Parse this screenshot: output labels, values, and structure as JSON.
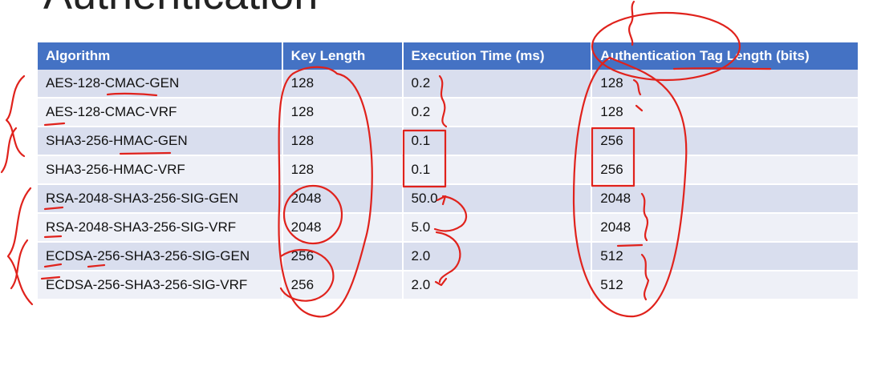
{
  "slide": {
    "title": "Authentication"
  },
  "table": {
    "headers": [
      "Algorithm",
      "Key Length",
      "Execution Time (ms)",
      "Authentication Tag Length (bits)"
    ],
    "rows": [
      [
        "AES-128-CMAC-GEN",
        "128",
        "0.2",
        "128"
      ],
      [
        "AES-128-CMAC-VRF",
        "128",
        "0.2",
        "128"
      ],
      [
        "SHA3-256-HMAC-GEN",
        "128",
        "0.1",
        "256"
      ],
      [
        "SHA3-256-HMAC-VRF",
        "128",
        "0.1",
        "256"
      ],
      [
        "RSA-2048-SHA3-256-SIG-GEN",
        "2048",
        "50.0",
        "2048"
      ],
      [
        "RSA-2048-SHA3-256-SIG-VRF",
        "2048",
        "5.0",
        "2048"
      ],
      [
        "ECDSA-256-SHA3-256-SIG-GEN",
        "256",
        "2.0",
        "512"
      ],
      [
        "ECDSA-256-SHA3-256-SIG-VRF",
        "256",
        "2.0",
        "512"
      ]
    ]
  },
  "colors": {
    "header_bg": "#4472c4",
    "row_dark": "#d9deee",
    "row_light": "#eef0f7",
    "ink": "#e0221c"
  }
}
